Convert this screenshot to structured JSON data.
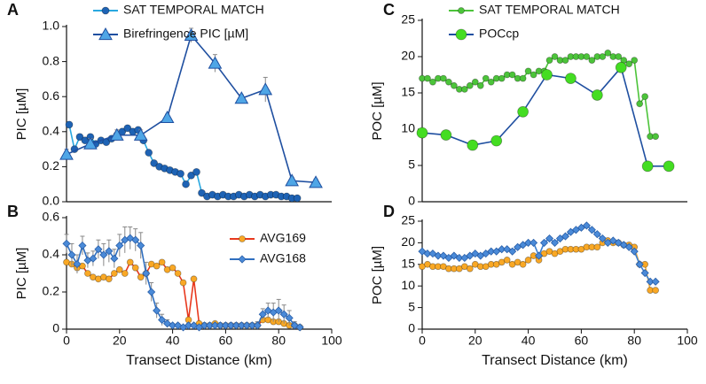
{
  "chart_data": [
    {
      "type": "line",
      "panel_label": "A",
      "ylabel": "PIC  [µM]",
      "legend": "above",
      "xlim": [
        0,
        100
      ],
      "ylim": [
        0,
        1
      ],
      "yticks": [
        {
          "value": 0,
          "label": "0.0"
        },
        0.2,
        0.4,
        0.6,
        0.8,
        {
          "value": 1,
          "label": "1.0"
        }
      ],
      "series": [
        {
          "name": "SAT TEMPORAL MATCH",
          "color": "#29a8e0",
          "marker": "circle",
          "marker_color": "#1e63b5",
          "marker_size": 4,
          "x": [
            1,
            3,
            5,
            7,
            9,
            11,
            13,
            15,
            17,
            19,
            21,
            23,
            25,
            27,
            29,
            31,
            33,
            35,
            37,
            39,
            41,
            43,
            45,
            47,
            49,
            51,
            53,
            55,
            57,
            59,
            61,
            63,
            65,
            67,
            69,
            71,
            73,
            75,
            77,
            79,
            81,
            83,
            85,
            87
          ],
          "values": [
            0.44,
            0.3,
            0.37,
            0.35,
            0.37,
            0.33,
            0.35,
            0.34,
            0.36,
            0.38,
            0.4,
            0.42,
            0.4,
            0.41,
            0.35,
            0.28,
            0.22,
            0.2,
            0.19,
            0.18,
            0.17,
            0.16,
            0.1,
            0.15,
            0.17,
            0.05,
            0.03,
            0.04,
            0.03,
            0.04,
            0.03,
            0.03,
            0.04,
            0.03,
            0.04,
            0.03,
            0.04,
            0.03,
            0.04,
            0.04,
            0.03,
            0.03,
            0.02,
            0.02
          ]
        },
        {
          "name": "Birefringence PIC [µM]",
          "color": "#1f4fa0",
          "marker": "triangle",
          "marker_color": "#4fa6e6",
          "marker_size": 7,
          "x": [
            0,
            9,
            19,
            28,
            38,
            47,
            56,
            66,
            75,
            85,
            94
          ],
          "values": [
            0.27,
            0.33,
            0.38,
            0.38,
            0.48,
            0.95,
            0.79,
            0.59,
            0.64,
            0.12,
            0.11
          ],
          "errors": [
            0.03,
            0.03,
            0.03,
            0.03,
            0.02,
            0.04,
            0.05,
            0.02,
            0.07,
            0.02,
            0.02
          ]
        }
      ]
    },
    {
      "type": "line",
      "panel_label": "B",
      "ylabel": "PIC [µM]",
      "xlabel": "Transect Distance (km)",
      "legend": "upper right",
      "xlim": [
        0,
        100
      ],
      "xticks": [
        0,
        20,
        40,
        60,
        80,
        100
      ],
      "ylim": [
        0,
        0.6
      ],
      "yticks": [
        0,
        0.2,
        0.4,
        0.6
      ],
      "x": [
        0,
        2,
        4,
        6,
        8,
        10,
        12,
        14,
        16,
        18,
        20,
        22,
        24,
        26,
        28,
        30,
        32,
        34,
        36,
        38,
        40,
        42,
        44,
        46,
        48,
        50,
        52,
        54,
        56,
        58,
        60,
        62,
        64,
        66,
        68,
        70,
        72,
        74,
        76,
        78,
        80,
        82,
        84,
        86,
        88
      ],
      "series": [
        {
          "name": "AVG169",
          "color": "#e8391e",
          "marker": "circle",
          "marker_color": "#f9a825",
          "marker_size": 3.5,
          "values": [
            0.36,
            0.35,
            0.33,
            0.34,
            0.3,
            0.28,
            0.27,
            0.28,
            0.27,
            0.3,
            0.32,
            0.3,
            0.36,
            0.33,
            0.28,
            0.3,
            0.35,
            0.34,
            0.36,
            0.32,
            0.33,
            0.3,
            0.25,
            0.05,
            0.27,
            0.03,
            0.02,
            0.02,
            0.03,
            0.02,
            0.02,
            0.02,
            0.02,
            0.02,
            0.02,
            0.02,
            0.02,
            0.05,
            0.05,
            0.04,
            0.04,
            0.03,
            0.02,
            0.02,
            0.01
          ]
        },
        {
          "name": "AVG168",
          "color": "#2f6fc0",
          "marker": "diamond",
          "marker_color": "#4a8ad8",
          "marker_size": 4,
          "values": [
            0.46,
            0.4,
            0.35,
            0.45,
            0.37,
            0.38,
            0.43,
            0.4,
            0.42,
            0.38,
            0.45,
            0.48,
            0.49,
            0.48,
            0.45,
            0.3,
            0.2,
            0.1,
            0.05,
            0.03,
            0.02,
            0.02,
            0.01,
            0.02,
            0.02,
            0.01,
            0.02,
            0.02,
            0.02,
            0.02,
            0.02,
            0.02,
            0.02,
            0.02,
            0.02,
            0.02,
            0.02,
            0.08,
            0.1,
            0.09,
            0.1,
            0.08,
            0.06,
            0.02,
            0.01
          ],
          "errors": [
            0.05,
            0.06,
            0.05,
            0.05,
            0.04,
            0.04,
            0.05,
            0.06,
            0.06,
            0.05,
            0.06,
            0.07,
            0.06,
            0.06,
            0.07,
            0.06,
            0.05,
            0.04,
            0.03,
            0.02,
            0.01,
            0.01,
            0.01,
            0.01,
            0.01,
            0.01,
            0.01,
            0.01,
            0.01,
            0.01,
            0.01,
            0.01,
            0.01,
            0.01,
            0.01,
            0.01,
            0.02,
            0.03,
            0.04,
            0.05,
            0.06,
            0.05,
            0.04,
            0.02,
            0.01
          ]
        }
      ]
    },
    {
      "type": "line",
      "panel_label": "C",
      "ylabel": "POC  [µM]",
      "legend": "above",
      "xlim": [
        0,
        100
      ],
      "ylim": [
        0,
        25
      ],
      "yticks": [
        0,
        5,
        10,
        15,
        20,
        25
      ],
      "series": [
        {
          "name": "SAT TEMPORAL MATCH",
          "color": "#4cc43a",
          "marker": "circle",
          "marker_color": "#4cc43a",
          "marker_size": 3.5,
          "x": [
            0,
            2,
            4,
            6,
            8,
            10,
            12,
            14,
            16,
            18,
            20,
            22,
            24,
            26,
            28,
            30,
            32,
            34,
            36,
            38,
            40,
            42,
            44,
            46,
            48,
            50,
            52,
            54,
            56,
            58,
            60,
            62,
            64,
            66,
            68,
            70,
            72,
            74,
            76,
            78,
            80,
            82,
            84,
            86,
            88
          ],
          "values": [
            17,
            17,
            16.5,
            17,
            17,
            16.5,
            16,
            15.5,
            15.5,
            16,
            16.5,
            16,
            17,
            16.5,
            17,
            17,
            17.5,
            17.5,
            17,
            17,
            18,
            17.5,
            18,
            18,
            19.5,
            20,
            19.5,
            19.5,
            20,
            20,
            20,
            20,
            19.5,
            20,
            20,
            20.5,
            20,
            20,
            19.5,
            19,
            19.5,
            13.5,
            14.5,
            9,
            9
          ]
        },
        {
          "name": "POCcp",
          "color": "#1f4fa0",
          "marker": "circle",
          "marker_color": "#44dd22",
          "marker_size": 6,
          "x": [
            0,
            9,
            19,
            28,
            38,
            47,
            56,
            66,
            75,
            85,
            93
          ],
          "values": [
            9.5,
            9.2,
            7.8,
            8.4,
            12.4,
            17.5,
            17,
            14.7,
            18.5,
            4.9,
            4.9
          ]
        }
      ]
    },
    {
      "type": "line",
      "panel_label": "D",
      "ylabel": "POC [µM]",
      "xlabel": "Transect Distance (km)",
      "xlim": [
        0,
        100
      ],
      "xticks": [
        0,
        20,
        40,
        60,
        80,
        100
      ],
      "ylim": [
        0,
        25
      ],
      "yticks": [
        0,
        5,
        10,
        15,
        20,
        25
      ],
      "x": [
        0,
        2,
        4,
        6,
        8,
        10,
        12,
        14,
        16,
        18,
        20,
        22,
        24,
        26,
        28,
        30,
        32,
        34,
        36,
        38,
        40,
        42,
        44,
        46,
        48,
        50,
        52,
        54,
        56,
        58,
        60,
        62,
        64,
        66,
        68,
        70,
        72,
        74,
        76,
        78,
        80,
        82,
        84,
        86,
        88
      ],
      "series": [
        {
          "color": "#f5b041",
          "marker": "circle",
          "marker_color": "#f9a825",
          "marker_size": 3.5,
          "values": [
            14.5,
            15,
            14.5,
            14.5,
            14.5,
            14,
            14,
            14,
            14.5,
            14,
            15,
            14.5,
            14.5,
            15,
            15,
            15.5,
            16,
            15,
            15.5,
            15,
            16,
            17,
            16,
            17.5,
            18,
            17.5,
            18,
            18.5,
            18.5,
            18.5,
            18.5,
            19,
            19,
            19,
            20,
            20.5,
            20,
            20,
            19.5,
            19.5,
            19,
            15,
            15,
            9,
            9
          ]
        },
        {
          "color": "#3a7fd0",
          "marker": "diamond",
          "marker_color": "#4a8ad8",
          "marker_size": 4,
          "values": [
            18,
            17.5,
            17.5,
            17,
            17,
            16.5,
            17,
            16.5,
            16.5,
            17,
            17.5,
            17,
            17.5,
            18,
            18,
            18.5,
            18.5,
            18,
            19,
            19.5,
            20,
            20,
            17,
            20,
            21,
            20,
            21,
            21.5,
            22.5,
            23,
            23.5,
            24,
            23,
            22,
            21,
            20,
            20.5,
            20,
            19.5,
            19,
            18,
            15,
            13,
            11,
            11
          ]
        }
      ]
    }
  ]
}
